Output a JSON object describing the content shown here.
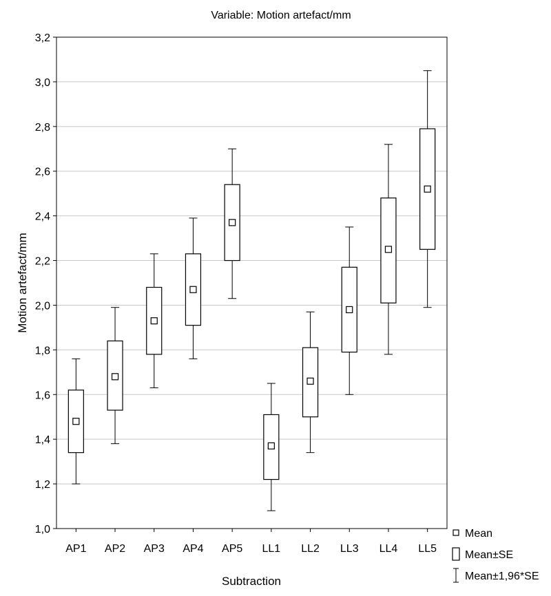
{
  "chart_data": {
    "type": "box",
    "title": "Variable: Motion artefact/mm",
    "xlabel": "Subtraction",
    "ylabel": "Motion artefact/mm",
    "ylim": [
      1.0,
      3.2
    ],
    "yticks": [
      "1,0",
      "1,2",
      "1,4",
      "1,6",
      "1,8",
      "2,0",
      "2,2",
      "2,4",
      "2,6",
      "2,8",
      "3,0",
      "3,2"
    ],
    "grid": true,
    "legend_position": "bottom-right",
    "categories": [
      "AP1",
      "AP2",
      "AP3",
      "AP4",
      "AP5",
      "LL1",
      "LL2",
      "LL3",
      "LL4",
      "LL5"
    ],
    "mean": [
      1.48,
      1.68,
      1.93,
      2.07,
      2.37,
      1.37,
      1.66,
      1.98,
      2.25,
      2.52
    ],
    "se_lower": [
      1.34,
      1.53,
      1.78,
      1.91,
      2.2,
      1.22,
      1.5,
      1.79,
      2.01,
      2.25
    ],
    "se_upper": [
      1.62,
      1.84,
      2.08,
      2.23,
      2.54,
      1.51,
      1.81,
      2.17,
      2.48,
      2.79
    ],
    "ci_lower": [
      1.2,
      1.38,
      1.63,
      1.76,
      2.03,
      1.08,
      1.34,
      1.6,
      1.78,
      1.99
    ],
    "ci_upper": [
      1.76,
      1.99,
      2.23,
      2.39,
      2.7,
      1.65,
      1.97,
      2.35,
      2.72,
      3.05
    ],
    "legend": [
      {
        "symbol": "mean",
        "label": "Mean"
      },
      {
        "symbol": "box",
        "label": "Mean±SE"
      },
      {
        "symbol": "whisker",
        "label": "Mean±1,96*SE"
      }
    ]
  },
  "colors": {
    "line": "#000000",
    "grid": "#c8c8c8",
    "background": "#ffffff"
  }
}
